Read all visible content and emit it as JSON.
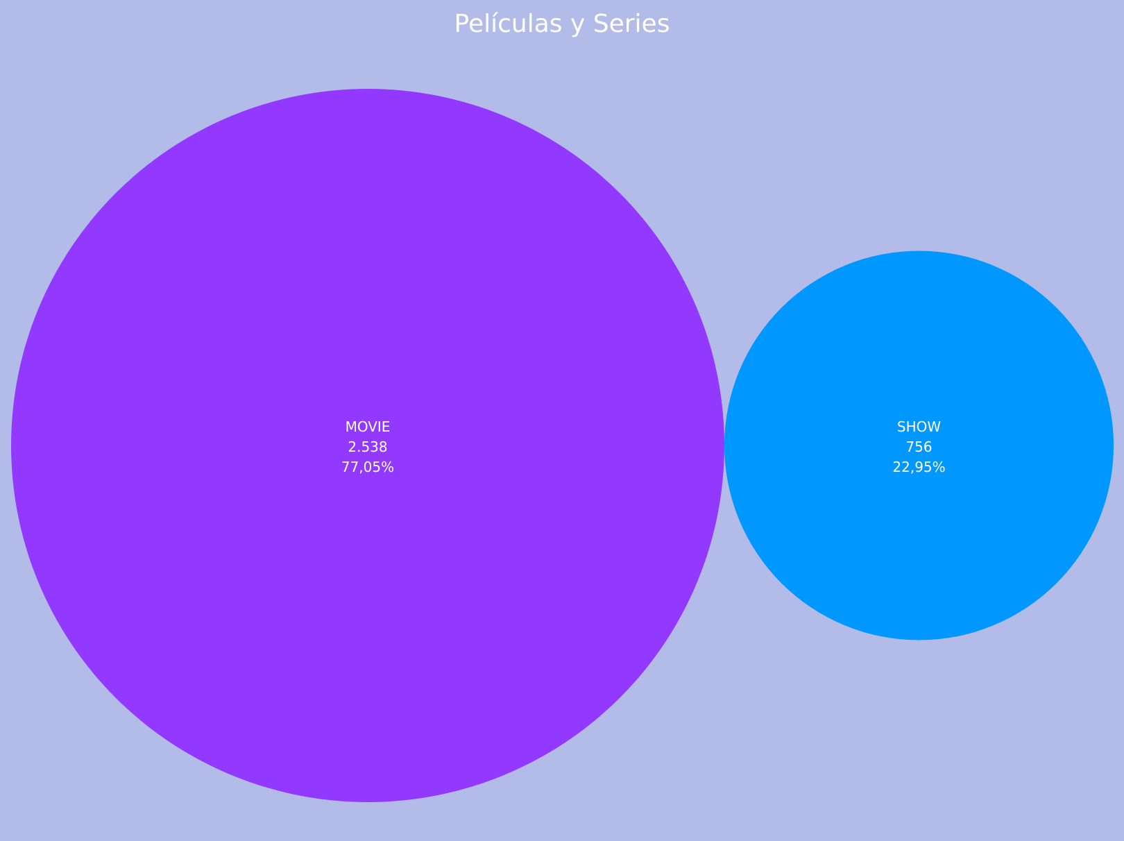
{
  "chart_data": {
    "type": "bubble",
    "title": "Películas y Series",
    "background_color": "#b3bce8",
    "items": [
      {
        "category": "MOVIE",
        "value": 2538,
        "value_label": "2.538",
        "percent": 77.05,
        "percent_label": "77,05%",
        "color": "#9338ff"
      },
      {
        "category": "SHOW",
        "value": 756,
        "value_label": "756",
        "percent": 22.95,
        "percent_label": "22,95%",
        "color": "#0098ff"
      }
    ]
  }
}
